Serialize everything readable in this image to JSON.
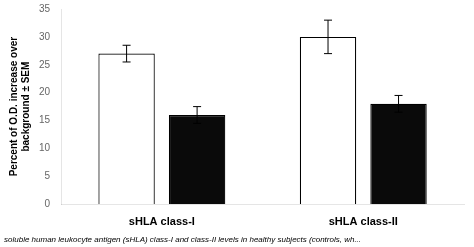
{
  "chart_data": {
    "type": "bar",
    "categories": [
      "sHLA class-I",
      "sHLA class-II"
    ],
    "series": [
      {
        "color": "#ffffff",
        "values": [
          27.0,
          30.0
        ],
        "errors": [
          1.5,
          3.0
        ]
      },
      {
        "color": "#0a0a0a",
        "values": [
          16.0,
          18.0
        ],
        "errors": [
          1.5,
          1.5
        ]
      }
    ],
    "ylabel": "Percent of O.D. increase over\nbackground ± SEM",
    "caption": "soluble human leukocyte antigen (sHLA) class-I and class-II levels in healthy subjects (controls, wh...",
    "ylim": [
      0,
      35
    ],
    "yticks": [
      0,
      5,
      10,
      15,
      20,
      25,
      30,
      35
    ],
    "grid": false
  }
}
